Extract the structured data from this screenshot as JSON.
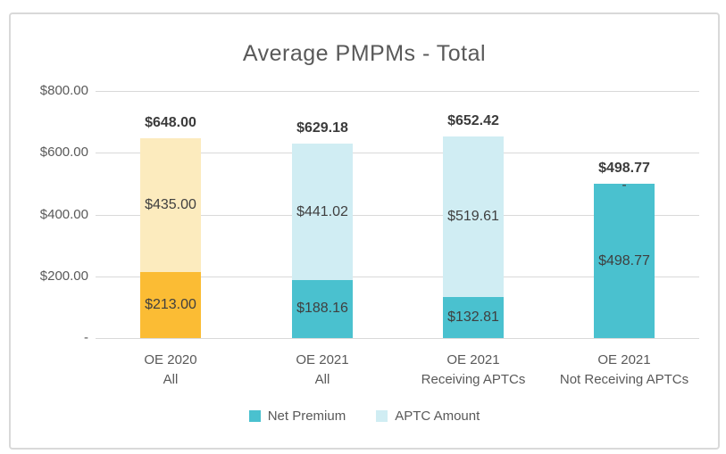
{
  "chart_data": {
    "type": "bar",
    "subtype": "stacked",
    "title": "Average PMPMs - Total",
    "y_axis": {
      "min": 0,
      "max": 800,
      "grid": true,
      "ticks": [
        {
          "value": 800,
          "label": "$800.00"
        },
        {
          "value": 600,
          "label": "$600.00"
        },
        {
          "value": 400,
          "label": "$400.00"
        },
        {
          "value": 200,
          "label": "$200.00"
        },
        {
          "value": 0,
          "label": "-"
        }
      ]
    },
    "legend": [
      {
        "name": "Net Premium",
        "color": "#4AC1CF"
      },
      {
        "name": "APTC Amount",
        "color": "#D0EDF3"
      }
    ],
    "categories": [
      "OE 2020 All",
      "OE 2021 All",
      "OE 2021 Receiving APTCs",
      "OE 2021 Not Receiving APTCs"
    ],
    "series": [
      {
        "name": "Net Premium",
        "values": [
          213.0,
          188.16,
          132.81,
          498.77
        ]
      },
      {
        "name": "APTC Amount",
        "values": [
          435.0,
          441.02,
          519.61,
          0
        ]
      }
    ],
    "bars": [
      {
        "category_lines": [
          "OE 2020",
          "All"
        ],
        "net_premium": {
          "value": 213.0,
          "label": "$213.00",
          "color": "#FBBC34"
        },
        "aptc_amount": {
          "value": 435.0,
          "label": "$435.00",
          "color": "#FCEBBE"
        },
        "total": {
          "value": 648.0,
          "label": "$648.00"
        }
      },
      {
        "category_lines": [
          "OE 2021",
          "All"
        ],
        "net_premium": {
          "value": 188.16,
          "label": "$188.16",
          "color": "#4AC1CF"
        },
        "aptc_amount": {
          "value": 441.02,
          "label": "$441.02",
          "color": "#D0EDF3"
        },
        "total": {
          "value": 629.18,
          "label": "$629.18"
        }
      },
      {
        "category_lines": [
          "OE 2021",
          "Receiving APTCs"
        ],
        "net_premium": {
          "value": 132.81,
          "label": "$132.81",
          "color": "#4AC1CF"
        },
        "aptc_amount": {
          "value": 519.61,
          "label": "$519.61",
          "color": "#D0EDF3"
        },
        "total": {
          "value": 652.42,
          "label": "$652.42"
        }
      },
      {
        "category_lines": [
          "OE 2021",
          "Not Receiving APTCs"
        ],
        "net_premium": {
          "value": 498.77,
          "label": "$498.77",
          "color": "#4AC1CF"
        },
        "aptc_amount": {
          "value": 0,
          "label": "-",
          "color": "#D0EDF3"
        },
        "total": {
          "value": 498.77,
          "label": "$498.77"
        }
      }
    ],
    "colors": {
      "grid": "#D9D9D9",
      "border": "#D9D9D9",
      "title_text": "#595959",
      "axis_text": "#595959",
      "value_text": "#3F3F3F"
    }
  }
}
